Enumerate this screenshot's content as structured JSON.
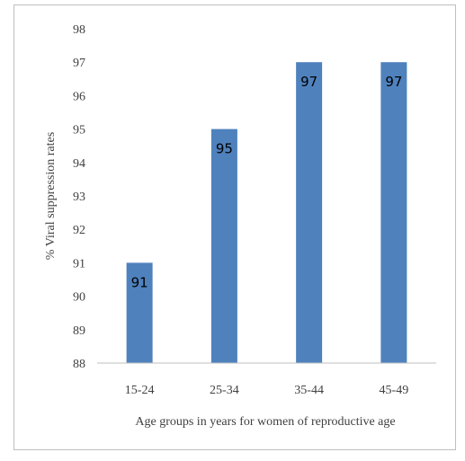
{
  "chart_data": {
    "type": "bar",
    "categories": [
      "15-24",
      "25-34",
      "35-44",
      "45-49"
    ],
    "values": [
      91,
      95,
      97,
      97
    ],
    "data_labels": [
      "91",
      "95",
      "97",
      "97"
    ],
    "title": "",
    "xlabel": "Age groups in years for women of reproductive age",
    "ylabel": "% Viral suppression rates",
    "ylim": [
      88,
      98
    ],
    "yticks": [
      "88",
      "89",
      "90",
      "91",
      "92",
      "93",
      "94",
      "95",
      "96",
      "97",
      "98"
    ],
    "grid": false,
    "legend": "none",
    "bar_color": "#4f81bd",
    "axis_color": "#bfbfbf"
  }
}
